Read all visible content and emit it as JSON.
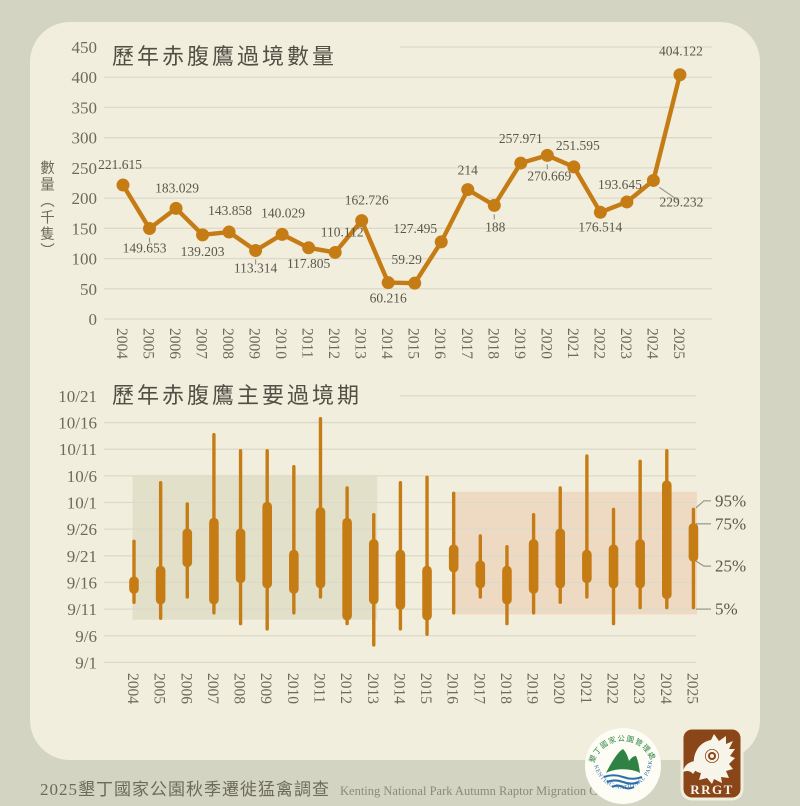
{
  "footer": {
    "title_cjk": "2025墾丁國家公園秋季遷徙猛禽調查",
    "title_en": "Kenting National Park Autumn Raptor Migration Count"
  },
  "colors": {
    "background": "#d4d4c2",
    "card": "#f1eede",
    "accent_orange": "#c67c15",
    "grid": "#dcd9c9",
    "axis_text": "#6c6a5b",
    "label_text": "#5a584b",
    "title_text": "#514f43",
    "leader_line": "#97958a"
  },
  "chart_data": [
    {
      "id": "passage-count",
      "type": "line",
      "title": "歷年赤腹鷹過境數量",
      "ylabel": "數量（千隻）",
      "x": [
        2004,
        2005,
        2006,
        2007,
        2008,
        2009,
        2010,
        2011,
        2012,
        2013,
        2014,
        2015,
        2016,
        2017,
        2018,
        2019,
        2020,
        2021,
        2022,
        2023,
        2024,
        2025
      ],
      "values": [
        221.615,
        149.653,
        183.029,
        139.203,
        143.858,
        113.314,
        140.029,
        117.805,
        110.112,
        162.726,
        60.216,
        59.29,
        127.495,
        214,
        188,
        257.971,
        270.669,
        251.595,
        176.514,
        193.645,
        229.232,
        404.122
      ],
      "point_labels": [
        "221.615",
        "149.653",
        "183.029",
        "139.203",
        "143.858",
        "113.314",
        "140.029",
        "117.805",
        "110.112",
        "162.726",
        "60.216",
        "59.29",
        "127.495",
        "214",
        "188",
        "257.971",
        "270.669",
        "251.595",
        "176.514",
        "193.645",
        "229.232",
        "404.122"
      ],
      "label_side": [
        "above",
        "below",
        "above",
        "below",
        "above",
        "below",
        "above",
        "below",
        "above",
        "above",
        "below",
        "above",
        "above",
        "above",
        "below",
        "above",
        "below",
        "above",
        "below",
        "above",
        "leader",
        "above"
      ],
      "ylim": [
        0,
        450
      ],
      "ytick_step": 50,
      "grid": true,
      "legend_position": "none",
      "line_color": "#c67c15"
    },
    {
      "id": "passage-period",
      "type": "candle-range",
      "title": "歷年赤腹鷹主要過境期",
      "x": [
        2004,
        2005,
        2006,
        2007,
        2008,
        2009,
        2010,
        2011,
        2012,
        2013,
        2014,
        2015,
        2016,
        2017,
        2018,
        2019,
        2020,
        2021,
        2022,
        2023,
        2024,
        2025
      ],
      "percentiles": {
        "p95": [
          "9/24",
          "10/5",
          "10/1",
          "10/14",
          "10/11",
          "10/11",
          "10/8",
          "10/17",
          "10/4",
          "9/29",
          "10/5",
          "10/6",
          "10/3",
          "9/25",
          "9/23",
          "9/29",
          "10/4",
          "10/10",
          "9/30",
          "10/9",
          "10/11",
          "9/30"
        ],
        "p75": [
          "9/17",
          "9/19",
          "9/26",
          "9/28",
          "9/26",
          "10/1",
          "9/22",
          "9/30",
          "9/28",
          "9/24",
          "9/22",
          "9/19",
          "9/23",
          "9/20",
          "9/19",
          "9/24",
          "9/26",
          "9/22",
          "9/23",
          "9/24",
          "10/5",
          "9/27"
        ],
        "p25": [
          "9/14",
          "9/12",
          "9/19",
          "9/12",
          "9/16",
          "9/15",
          "9/14",
          "9/15",
          "9/9",
          "9/12",
          "9/11",
          "9/9",
          "9/18",
          "9/15",
          "9/12",
          "9/14",
          "9/15",
          "9/16",
          "9/15",
          "9/15",
          "9/13",
          "9/20"
        ],
        "p5": [
          "9/12",
          "9/9",
          "9/13",
          "9/10",
          "9/8",
          "9/7",
          "9/10",
          "9/13",
          "9/8",
          "9/4",
          "9/7",
          "9/6",
          "9/10",
          "9/13",
          "9/8",
          "9/10",
          "9/12",
          "9/13",
          "9/8",
          "9/11",
          "9/11",
          "9/11"
        ]
      },
      "yticks": [
        "9/1",
        "9/6",
        "9/11",
        "9/16",
        "9/21",
        "9/26",
        "10/1",
        "10/6",
        "10/11",
        "10/16",
        "10/21"
      ],
      "legend": [
        "95%",
        "75%",
        "25%",
        "5%"
      ],
      "legend_position": "right",
      "bands": [
        {
          "name": "decade-band-2004-2013",
          "from_year": 2004,
          "to_year": 2013,
          "date_from": "9/9",
          "date_to": "10/6",
          "color": "#e3e0ca"
        },
        {
          "name": "decade-band-2016-2025",
          "from_year": 2016,
          "to_year": 2025,
          "date_from": "9/10",
          "date_to": "10/3",
          "color": "#eedac3"
        }
      ],
      "grid": true,
      "bar_color": "#c67c15"
    }
  ],
  "logos": {
    "kenting": {
      "ring_top": "墾丁國家公園管理處",
      "ring_bottom": "KENTING NATIONAL PARK",
      "green": "#2e8243",
      "blue": "#2d6fae",
      "disc": "#fdfdf6"
    },
    "rrgt": {
      "label": "RRGT",
      "brown": "#8a4519",
      "white": "#f7f4ea"
    }
  }
}
